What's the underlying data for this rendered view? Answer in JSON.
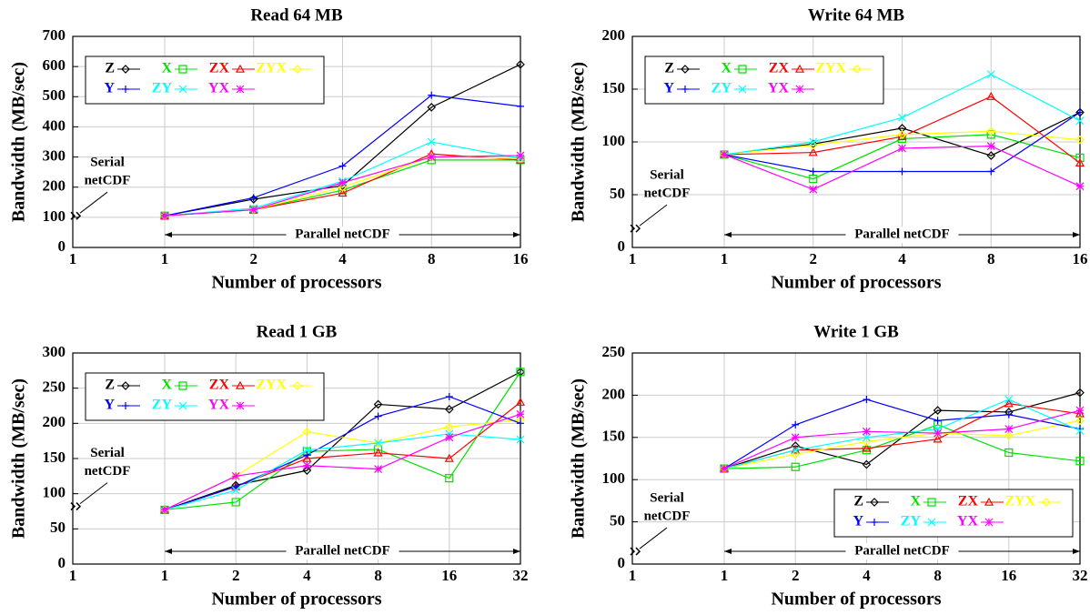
{
  "chart_data": [
    {
      "type": "line",
      "title": "Read 64 MB",
      "xlabel": "Number of processors",
      "ylabel": "Bandwidth (MB/sec)",
      "serial_category": "1",
      "serial_value": 105,
      "serial_label": [
        "Serial",
        "netCDF"
      ],
      "parallel_label": "Parallel netCDF",
      "categories": [
        "1",
        "2",
        "4",
        "8",
        "16"
      ],
      "ylim": [
        0,
        700
      ],
      "yticks": [
        0,
        100,
        200,
        300,
        400,
        500,
        600,
        700
      ],
      "grid": true,
      "legend": "upper left",
      "series": [
        {
          "name": "Z",
          "color": "#000000",
          "marker": "diamond",
          "values": [
            105,
            160,
            205,
            465,
            607
          ]
        },
        {
          "name": "X",
          "color": "#00e000",
          "marker": "square",
          "values": [
            105,
            125,
            190,
            290,
            290
          ]
        },
        {
          "name": "ZX",
          "color": "#ff0000",
          "marker": "triangle",
          "values": [
            105,
            125,
            180,
            310,
            290
          ]
        },
        {
          "name": "ZYX",
          "color": "#ffff00",
          "marker": "diamond",
          "values": [
            105,
            125,
            200,
            300,
            295
          ]
        },
        {
          "name": "Y",
          "color": "#0000ff",
          "marker": "plus",
          "values": [
            105,
            165,
            270,
            505,
            468
          ]
        },
        {
          "name": "ZY",
          "color": "#00ffff",
          "marker": "x",
          "values": [
            105,
            130,
            220,
            350,
            295
          ]
        },
        {
          "name": "YX",
          "color": "#ff00ff",
          "marker": "star",
          "values": [
            105,
            125,
            215,
            300,
            305
          ]
        }
      ]
    },
    {
      "type": "line",
      "title": "Write 64 MB",
      "xlabel": "Number of processors",
      "ylabel": "Bandwidth (MB/sec)",
      "serial_category": "1",
      "serial_value": 18,
      "serial_label": [
        "Serial",
        "netCDF"
      ],
      "parallel_label": "Parallel netCDF",
      "categories": [
        "1",
        "2",
        "4",
        "8",
        "16"
      ],
      "ylim": [
        0,
        200
      ],
      "yticks": [
        0,
        50,
        100,
        150,
        200
      ],
      "grid": true,
      "legend": "upper left",
      "series": [
        {
          "name": "Z",
          "color": "#000000",
          "marker": "diamond",
          "values": [
            88,
            98,
            113,
            87,
            128
          ]
        },
        {
          "name": "X",
          "color": "#00e000",
          "marker": "square",
          "values": [
            88,
            65,
            103,
            107,
            85
          ]
        },
        {
          "name": "ZX",
          "color": "#ff0000",
          "marker": "triangle",
          "values": [
            88,
            90,
            105,
            143,
            80
          ]
        },
        {
          "name": "ZYX",
          "color": "#ffff00",
          "marker": "diamond",
          "values": [
            88,
            97,
            107,
            110,
            102
          ]
        },
        {
          "name": "Y",
          "color": "#0000ff",
          "marker": "plus",
          "values": [
            88,
            72,
            72,
            72,
            128
          ]
        },
        {
          "name": "ZY",
          "color": "#00ffff",
          "marker": "x",
          "values": [
            88,
            100,
            123,
            164,
            120
          ]
        },
        {
          "name": "YX",
          "color": "#ff00ff",
          "marker": "star",
          "values": [
            88,
            55,
            94,
            96,
            58
          ]
        }
      ]
    },
    {
      "type": "line",
      "title": "Read 1 GB",
      "xlabel": "Number of processors",
      "ylabel": "Bandwidth (MB/sec)",
      "serial_category": "1",
      "serial_value": 82,
      "serial_label": [
        "Serial",
        "netCDF"
      ],
      "parallel_label": "Parallel netCDF",
      "categories": [
        "1",
        "2",
        "4",
        "8",
        "16",
        "32"
      ],
      "ylim": [
        0,
        300
      ],
      "yticks": [
        0,
        50,
        100,
        150,
        200,
        250,
        300
      ],
      "grid": true,
      "legend": "upper left",
      "series": [
        {
          "name": "Z",
          "color": "#000000",
          "marker": "diamond",
          "values": [
            77,
            112,
            133,
            227,
            220,
            273
          ]
        },
        {
          "name": "X",
          "color": "#00e000",
          "marker": "square",
          "values": [
            77,
            88,
            160,
            163,
            122,
            273
          ]
        },
        {
          "name": "ZX",
          "color": "#ff0000",
          "marker": "triangle",
          "values": [
            77,
            110,
            150,
            158,
            150,
            230
          ]
        },
        {
          "name": "ZYX",
          "color": "#ffff00",
          "marker": "diamond",
          "values": [
            77,
            125,
            188,
            172,
            195,
            205
          ]
        },
        {
          "name": "Y",
          "color": "#0000ff",
          "marker": "plus",
          "values": [
            77,
            110,
            155,
            210,
            238,
            200
          ]
        },
        {
          "name": "ZY",
          "color": "#00ffff",
          "marker": "x",
          "values": [
            77,
            105,
            162,
            172,
            185,
            177
          ]
        },
        {
          "name": "YX",
          "color": "#ff00ff",
          "marker": "star",
          "values": [
            77,
            125,
            140,
            135,
            180,
            213
          ]
        }
      ]
    },
    {
      "type": "line",
      "title": "Write 1 GB",
      "xlabel": "Number of processors",
      "ylabel": "Bandwidth (MB/sec)",
      "serial_category": "1",
      "serial_value": 15,
      "serial_label": [
        "Serial",
        "netCDF"
      ],
      "parallel_label": "Parallel netCDF",
      "categories": [
        "1",
        "2",
        "4",
        "8",
        "16",
        "32"
      ],
      "ylim": [
        0,
        250
      ],
      "yticks": [
        0,
        50,
        100,
        150,
        200,
        250
      ],
      "grid": true,
      "legend": "lower right",
      "series": [
        {
          "name": "Z",
          "color": "#000000",
          "marker": "diamond",
          "values": [
            113,
            140,
            118,
            182,
            180,
            203
          ]
        },
        {
          "name": "X",
          "color": "#00e000",
          "marker": "square",
          "values": [
            113,
            115,
            135,
            165,
            132,
            122
          ]
        },
        {
          "name": "ZX",
          "color": "#ff0000",
          "marker": "triangle",
          "values": [
            113,
            135,
            137,
            148,
            190,
            178
          ]
        },
        {
          "name": "ZYX",
          "color": "#ffff00",
          "marker": "diamond",
          "values": [
            113,
            130,
            145,
            155,
            152,
            170
          ]
        },
        {
          "name": "Y",
          "color": "#0000ff",
          "marker": "plus",
          "values": [
            113,
            165,
            195,
            170,
            177,
            160
          ]
        },
        {
          "name": "ZY",
          "color": "#00ffff",
          "marker": "x",
          "values": [
            113,
            135,
            150,
            160,
            195,
            158
          ]
        },
        {
          "name": "YX",
          "color": "#ff00ff",
          "marker": "star",
          "values": [
            113,
            150,
            157,
            155,
            160,
            182
          ]
        }
      ]
    }
  ]
}
